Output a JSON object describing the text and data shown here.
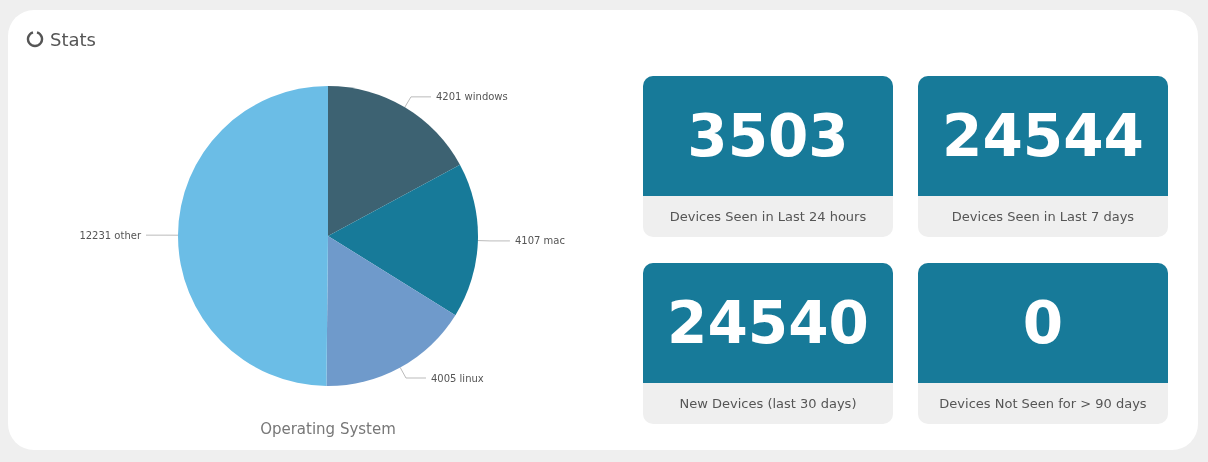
{
  "chart_data": [
    {
      "type": "pie",
      "title": "Stats",
      "xlabel": "Operating System",
      "categories": [
        "windows",
        "mac",
        "linux",
        "other"
      ],
      "values": [
        4201,
        4107,
        4005,
        12231
      ],
      "colors": [
        "#3d6272",
        "#177a99",
        "#6f9acb",
        "#6bbde6"
      ],
      "data_labels": true,
      "legend": false
    },
    {
      "type": "other",
      "categories": [
        "Devices Seen in Last 24 hours",
        "Devices Seen in Last 7 days",
        "New Devices (last 30 days)",
        "Devices Not Seen for > 90 days"
      ],
      "values": [
        3503,
        24544,
        24540,
        0
      ],
      "color": "#177a99",
      "data_labels": true
    }
  ]
}
